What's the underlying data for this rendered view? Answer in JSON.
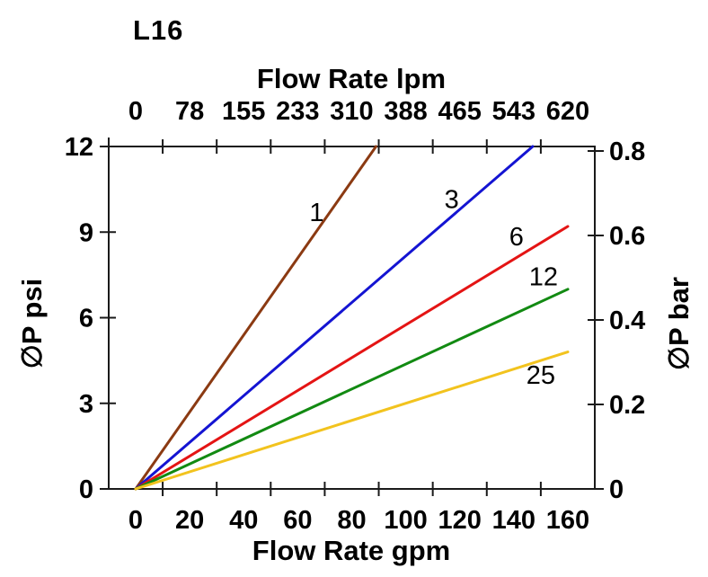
{
  "chart_data": {
    "type": "line",
    "title": "L16",
    "x_unit": "gpm",
    "y_unit": "psi",
    "axes": {
      "top": {
        "label": "Flow Rate lpm",
        "ticks": [
          0,
          78,
          155,
          233,
          310,
          388,
          465,
          543,
          620
        ]
      },
      "bottom": {
        "label": "Flow Rate gpm",
        "ticks": [
          0,
          20,
          40,
          60,
          80,
          100,
          120,
          140,
          160
        ],
        "minor_tick_positions": [
          10,
          30,
          50,
          70,
          90,
          110,
          130,
          150
        ],
        "range": [
          0,
          160
        ]
      },
      "left": {
        "label": "∅P psi",
        "ticks": [
          0,
          3,
          6,
          9,
          12
        ],
        "range": [
          0,
          12
        ]
      },
      "right": {
        "label": "∅P bar",
        "ticks": [
          0,
          0.2,
          0.4,
          0.6,
          0.8
        ],
        "range": [
          0,
          0.8
        ]
      }
    },
    "series": [
      {
        "name": "1",
        "color": "#8B3A12",
        "points": [
          [
            0,
            0
          ],
          [
            89,
            12
          ]
        ],
        "label_at": {
          "x": 67,
          "y": 9.7
        }
      },
      {
        "name": "3",
        "color": "#1414D2",
        "points": [
          [
            0,
            0
          ],
          [
            147,
            12
          ]
        ],
        "label_at": {
          "x": 117,
          "y": 10.15
        }
      },
      {
        "name": "6",
        "color": "#E41414",
        "points": [
          [
            0,
            0
          ],
          [
            160,
            9.2
          ]
        ],
        "label_at": {
          "x": 141,
          "y": 8.85
        }
      },
      {
        "name": "12",
        "color": "#128A12",
        "points": [
          [
            0,
            0
          ],
          [
            160,
            7.0
          ]
        ],
        "label_at": {
          "x": 151,
          "y": 7.45
        }
      },
      {
        "name": "25",
        "color": "#F2C31E",
        "points": [
          [
            0,
            0
          ],
          [
            160,
            4.8
          ]
        ],
        "label_at": {
          "x": 150,
          "y": 4.0
        }
      }
    ],
    "grid": false,
    "background": "#FFFFFF",
    "axis_color": "#1A1A1A"
  }
}
